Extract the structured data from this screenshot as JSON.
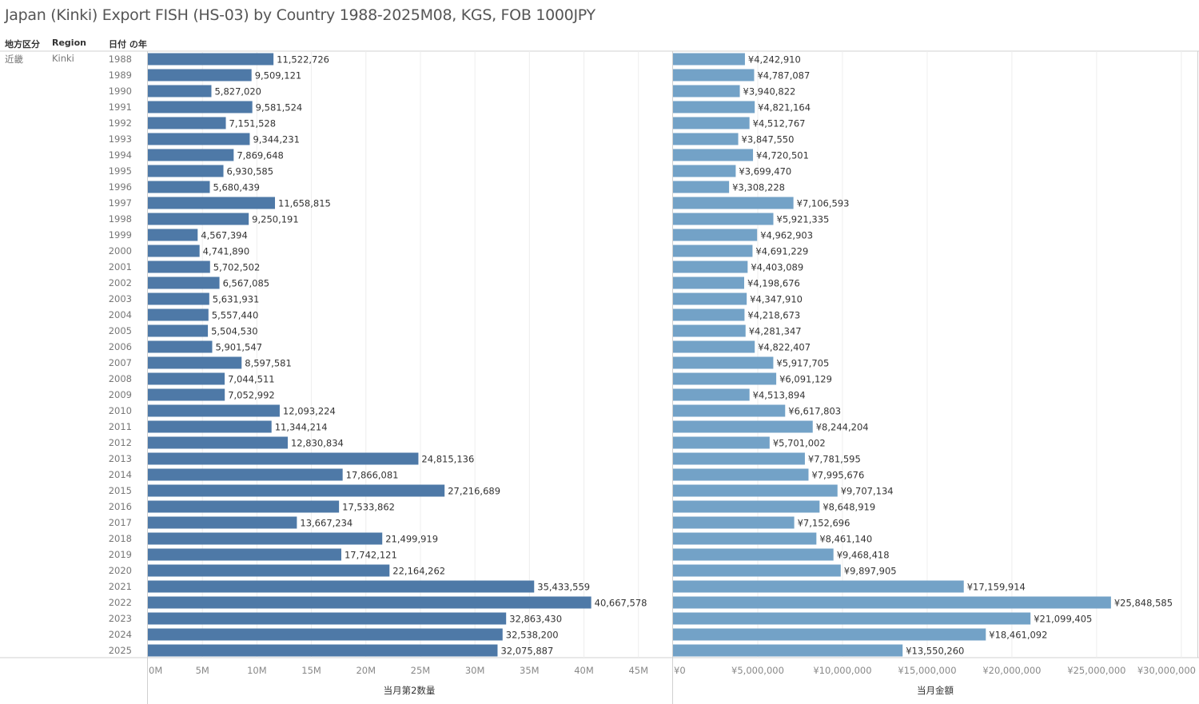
{
  "title": "Japan (Kinki) Export FISH (HS-03) by Country 1988-2025M08, KGS, FOB 1000JPY",
  "headers": {
    "col1": "地方区分",
    "col2": "Region",
    "col3": "日付 の年"
  },
  "row_labels": {
    "col1": "近畿",
    "col2": "Kinki"
  },
  "colors": {
    "quantity": "#4e79a7",
    "amount": "#73a2c7",
    "grid": "#eeeeee",
    "border": "#d0d0d0"
  },
  "chart_data": [
    {
      "type": "bar",
      "orientation": "horizontal",
      "xlabel": "当月第2数量",
      "categories": [
        "1988",
        "1989",
        "1990",
        "1991",
        "1992",
        "1993",
        "1994",
        "1995",
        "1996",
        "1997",
        "1998",
        "1999",
        "2000",
        "2001",
        "2002",
        "2003",
        "2004",
        "2005",
        "2006",
        "2007",
        "2008",
        "2009",
        "2010",
        "2011",
        "2012",
        "2013",
        "2014",
        "2015",
        "2016",
        "2017",
        "2018",
        "2019",
        "2020",
        "2021",
        "2022",
        "2023",
        "2024",
        "2025"
      ],
      "values": [
        11522726,
        9509121,
        5827020,
        9581524,
        7151528,
        9344231,
        7869648,
        6930585,
        5680439,
        11658815,
        9250191,
        4567394,
        4741890,
        5702502,
        6567085,
        5631931,
        5557440,
        5504530,
        5901547,
        8597581,
        7044511,
        7052992,
        12093224,
        11344214,
        12830834,
        24815136,
        17866081,
        27216689,
        17533862,
        13667234,
        21499919,
        17742121,
        22164262,
        35433559,
        40667578,
        32863430,
        32538200,
        32075887
      ],
      "data_labels": [
        "11,522,726",
        "9,509,121",
        "5,827,020",
        "9,581,524",
        "7,151,528",
        "9,344,231",
        "7,869,648",
        "6,930,585",
        "5,680,439",
        "11,658,815",
        "9,250,191",
        "4,567,394",
        "4,741,890",
        "5,702,502",
        "6,567,085",
        "5,631,931",
        "5,557,440",
        "5,504,530",
        "5,901,547",
        "8,597,581",
        "7,044,511",
        "7,052,992",
        "12,093,224",
        "11,344,214",
        "12,830,834",
        "24,815,136",
        "17,866,081",
        "27,216,689",
        "17,533,862",
        "13,667,234",
        "21,499,919",
        "17,742,121",
        "22,164,262",
        "35,433,559",
        "40,667,578",
        "32,863,430",
        "32,538,200",
        "32,075,887"
      ],
      "xlim": [
        0,
        48100000
      ],
      "ticks": [
        0,
        5000000,
        10000000,
        15000000,
        20000000,
        25000000,
        30000000,
        35000000,
        40000000,
        45000000
      ],
      "tick_labels": [
        "0M",
        "5M",
        "10M",
        "15M",
        "20M",
        "25M",
        "30M",
        "35M",
        "40M",
        "45M"
      ],
      "grid": true
    },
    {
      "type": "bar",
      "orientation": "horizontal",
      "xlabel": "当月金額",
      "categories": [
        "1988",
        "1989",
        "1990",
        "1991",
        "1992",
        "1993",
        "1994",
        "1995",
        "1996",
        "1997",
        "1998",
        "1999",
        "2000",
        "2001",
        "2002",
        "2003",
        "2004",
        "2005",
        "2006",
        "2007",
        "2008",
        "2009",
        "2010",
        "2011",
        "2012",
        "2013",
        "2014",
        "2015",
        "2016",
        "2017",
        "2018",
        "2019",
        "2020",
        "2021",
        "2022",
        "2023",
        "2024",
        "2025"
      ],
      "values": [
        4242910,
        4787087,
        3940822,
        4821164,
        4512767,
        3847550,
        4720501,
        3699470,
        3308228,
        7106593,
        5921335,
        4962903,
        4691229,
        4403089,
        4198676,
        4347910,
        4218673,
        4281347,
        4822407,
        5917705,
        6091129,
        4513894,
        6617803,
        8244204,
        5701002,
        7781595,
        7995676,
        9707134,
        8648919,
        7152696,
        8461140,
        9468418,
        9897905,
        17159914,
        25848585,
        21099405,
        18461092,
        13550260
      ],
      "data_labels": [
        "¥4,242,910",
        "¥4,787,087",
        "¥3,940,822",
        "¥4,821,164",
        "¥4,512,767",
        "¥3,847,550",
        "¥4,720,501",
        "¥3,699,470",
        "¥3,308,228",
        "¥7,106,593",
        "¥5,921,335",
        "¥4,962,903",
        "¥4,691,229",
        "¥4,403,089",
        "¥4,198,676",
        "¥4,347,910",
        "¥4,218,673",
        "¥4,281,347",
        "¥4,822,407",
        "¥5,917,705",
        "¥6,091,129",
        "¥4,513,894",
        "¥6,617,803",
        "¥8,244,204",
        "¥5,701,002",
        "¥7,781,595",
        "¥7,995,676",
        "¥9,707,134",
        "¥8,648,919",
        "¥7,152,696",
        "¥8,461,140",
        "¥9,468,418",
        "¥9,897,905",
        "¥17,159,914",
        "¥25,848,585",
        "¥21,099,405",
        "¥18,461,092",
        "¥13,550,260"
      ],
      "xlim": [
        0,
        30950000
      ],
      "ticks": [
        0,
        5000000,
        10000000,
        15000000,
        20000000,
        25000000,
        30000000
      ],
      "tick_labels": [
        "¥0",
        "¥5,000,000",
        "¥10,000,000",
        "¥15,000,000",
        "¥20,000,000",
        "¥25,000,000",
        "¥30,000,000"
      ],
      "grid": true
    }
  ]
}
